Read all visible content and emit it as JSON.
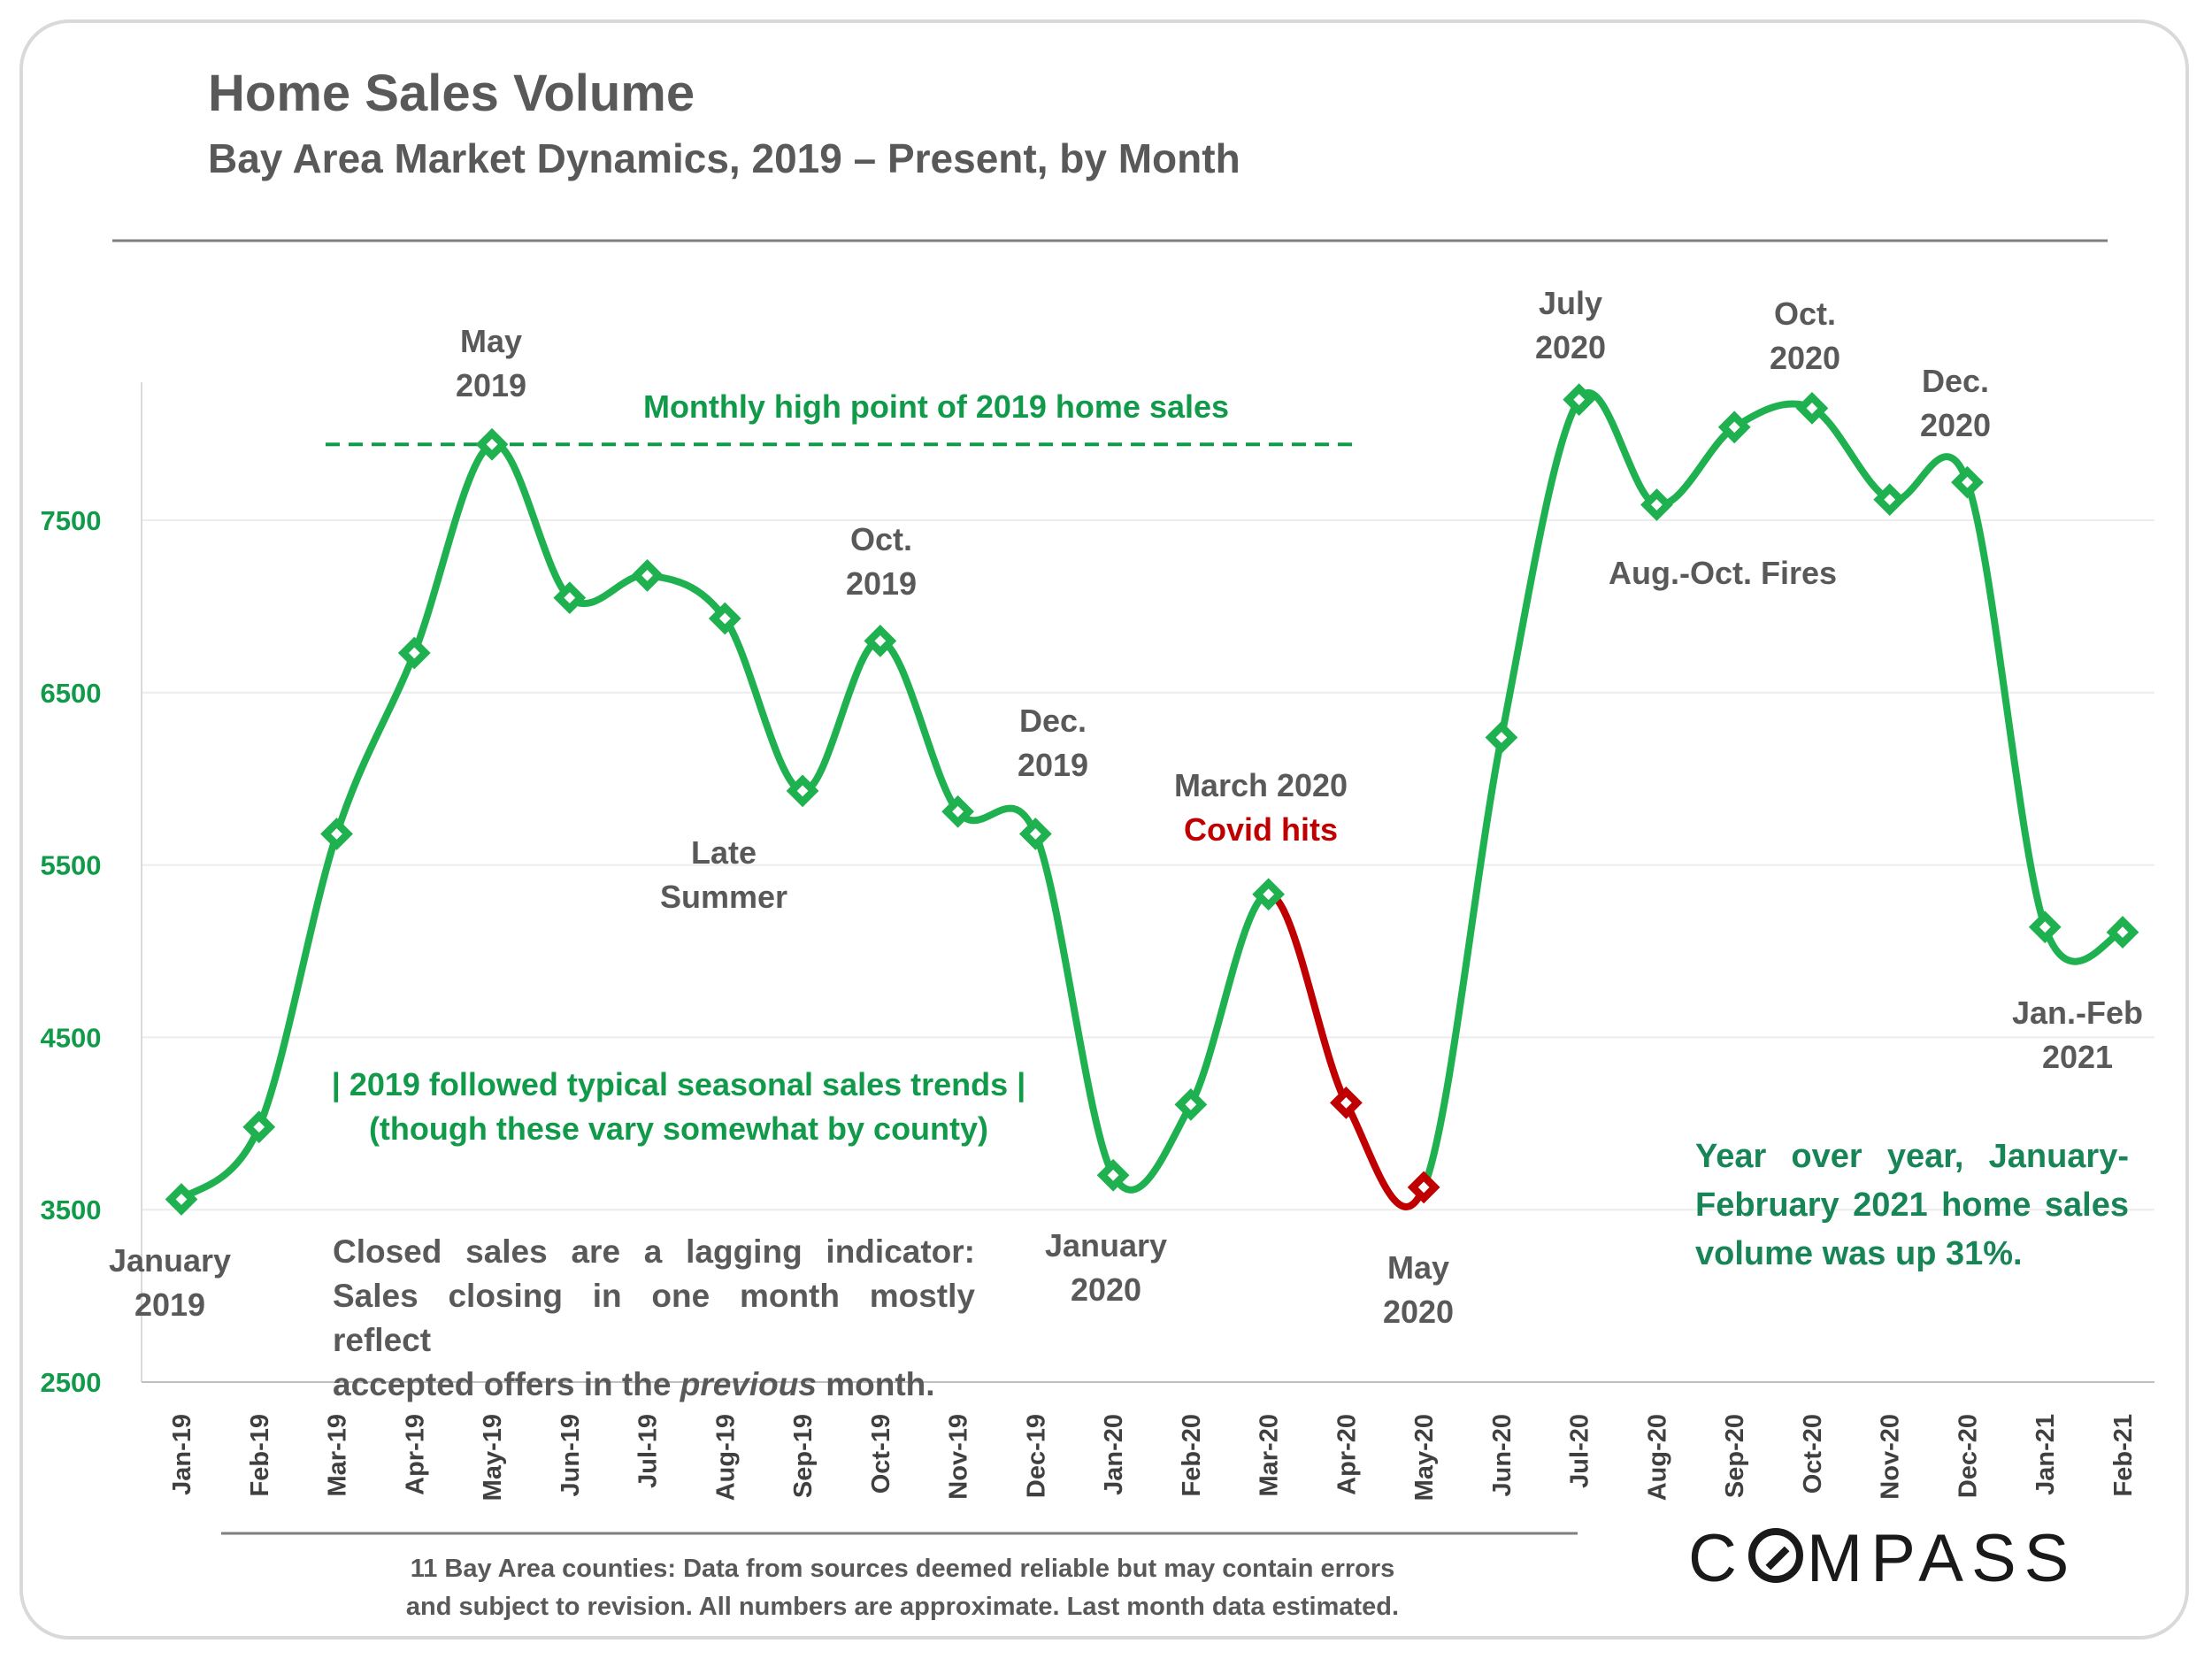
{
  "title": "Home Sales Volume",
  "subtitle": "Bay Area Market Dynamics, 2019 – Present, by Month",
  "footnote_line1": "11 Bay Area counties: Data from sources deemed reliable but may contain errors",
  "footnote_line2": "and subject to revision. All numbers are approximate. Last month data estimated.",
  "logo_text": "COMPASS",
  "note": {
    "part1": "Closed sales are a lagging indicator: Sales closing in one month mostly reflect",
    "part2": "accepted offers in the ",
    "italic": "previous",
    "part3": " month."
  },
  "yoy_note": "Year over year, January-February 2021 home sales volume was up 31%.",
  "colors": {
    "line": "#1fb14f",
    "covid": "#c00000",
    "text_gray": "#595959",
    "text_green": "#109a4a",
    "axis_green": "#109a4a"
  },
  "chart_data": {
    "type": "line",
    "categories": [
      "Jan-19",
      "Feb-19",
      "Mar-19",
      "Apr-19",
      "May-19",
      "Jun-19",
      "Jul-19",
      "Aug-19",
      "Sep-19",
      "Oct-19",
      "Nov-19",
      "Dec-19",
      "Jan-20",
      "Feb-20",
      "Mar-20",
      "Apr-20",
      "May-20",
      "Jun-20",
      "Jul-20",
      "Aug-20",
      "Sep-20",
      "Oct-20",
      "Nov-20",
      "Dec-20",
      "Jan-21",
      "Feb-21"
    ],
    "values": [
      3560,
      3980,
      5680,
      6730,
      7940,
      7050,
      7180,
      6930,
      5930,
      6800,
      5810,
      5680,
      3700,
      4110,
      5330,
      4120,
      3630,
      6240,
      8200,
      7590,
      8040,
      8150,
      7620,
      7720,
      5140,
      5110
    ],
    "highlight_range": [
      "Mar-20",
      "May-20"
    ],
    "ylim": [
      2500,
      8500
    ],
    "yticks": [
      2500,
      3500,
      4500,
      5500,
      6500,
      7500
    ],
    "grid": true,
    "reference_line": {
      "value": 7940,
      "label": "Monthly high point of 2019 home sales"
    },
    "annotations": [
      {
        "lines": [
          "January",
          "2019"
        ],
        "color": "gray"
      },
      {
        "lines": [
          "May",
          "2019"
        ],
        "color": "gray"
      },
      {
        "lines": [
          "Oct.",
          "2019"
        ],
        "color": "gray"
      },
      {
        "lines": [
          "Late",
          "Summer"
        ],
        "color": "gray"
      },
      {
        "lines": [
          "Dec.",
          "2019"
        ],
        "color": "gray"
      },
      {
        "lines": [
          "January",
          "2020"
        ],
        "color": "gray"
      },
      {
        "lines": [
          "March 2020"
        ],
        "color": "gray"
      },
      {
        "lines": [
          "Covid hits"
        ],
        "color": "red"
      },
      {
        "lines": [
          "May",
          "2020"
        ],
        "color": "gray"
      },
      {
        "lines": [
          "July",
          "2020"
        ],
        "color": "gray"
      },
      {
        "lines": [
          "Oct.",
          "2020"
        ],
        "color": "gray"
      },
      {
        "lines": [
          "Dec.",
          "2020"
        ],
        "color": "gray"
      },
      {
        "lines": [
          "Aug.-Oct. Fires"
        ],
        "color": "gray"
      },
      {
        "lines": [
          "Jan.-Feb",
          "2021"
        ],
        "color": "gray"
      },
      {
        "lines": [
          "| 2019 followed typical seasonal sales trends |",
          "(though these vary somewhat by county)"
        ],
        "color": "green"
      }
    ]
  }
}
